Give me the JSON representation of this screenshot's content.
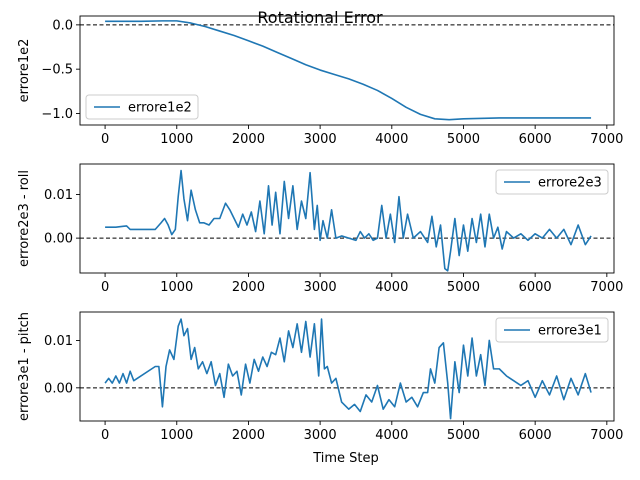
{
  "chart_data": {
    "type": "line",
    "title": "Rotational Error",
    "xlabel": "Time Step",
    "line_color": "#1f77b4",
    "reference_line": {
      "y": 0,
      "style": "dashed",
      "color": "#000000"
    },
    "subplots": [
      {
        "ylabel": "errore1e2",
        "legend": "lower-left",
        "xlim": [
          -350,
          7100
        ],
        "ylim": [
          -1.13,
          0.1
        ],
        "x_ticks": [
          0,
          1000,
          2000,
          3000,
          4000,
          5000,
          6000,
          7000
        ],
        "x_tick_labels": [
          "0",
          "1000",
          "2000",
          "3000",
          "4000",
          "5000",
          "6000",
          "7000"
        ],
        "y_ticks": [
          0.0,
          -0.5,
          -1.0
        ],
        "y_tick_labels": [
          "0.0",
          "−0.5",
          "−1.0"
        ],
        "series": [
          {
            "name": "errore1e2",
            "x": [
              0,
              500,
              800,
              1000,
              1200,
              1400,
              1600,
              1800,
              2000,
              2200,
              2400,
              2600,
              2800,
              3000,
              3200,
              3400,
              3600,
              3800,
              4000,
              4200,
              4400,
              4600,
              4800,
              5000,
              5500,
              6000,
              6500,
              6780
            ],
            "y": [
              0.04,
              0.04,
              0.045,
              0.045,
              0.02,
              -0.02,
              -0.07,
              -0.12,
              -0.18,
              -0.24,
              -0.31,
              -0.38,
              -0.45,
              -0.51,
              -0.56,
              -0.61,
              -0.67,
              -0.74,
              -0.83,
              -0.93,
              -1.01,
              -1.06,
              -1.07,
              -1.06,
              -1.05,
              -1.05,
              -1.05,
              -1.05
            ]
          }
        ]
      },
      {
        "ylabel": "errore2e3 - roll",
        "legend": "upper-right",
        "xlim": [
          -350,
          7100
        ],
        "ylim": [
          -0.008,
          0.017
        ],
        "x_ticks": [
          0,
          1000,
          2000,
          3000,
          4000,
          5000,
          6000,
          7000
        ],
        "x_tick_labels": [
          "0",
          "1000",
          "2000",
          "3000",
          "4000",
          "5000",
          "6000",
          "7000"
        ],
        "y_ticks": [
          0.01,
          0.0
        ],
        "y_tick_labels": [
          "0.01",
          "0.00"
        ],
        "series": [
          {
            "name": "errore2e3",
            "x": [
              0,
              150,
              250,
              300,
              350,
              700,
              780,
              830,
              880,
              930,
              980,
              1020,
              1060,
              1100,
              1150,
              1200,
              1260,
              1320,
              1380,
              1450,
              1520,
              1600,
              1680,
              1740,
              1800,
              1860,
              1920,
              1980,
              2040,
              2100,
              2160,
              2220,
              2280,
              2330,
              2380,
              2440,
              2500,
              2560,
              2620,
              2680,
              2740,
              2800,
              2860,
              2920,
              2960,
              3000,
              3040,
              3100,
              3160,
              3220,
              3300,
              3400,
              3500,
              3560,
              3620,
              3680,
              3740,
              3800,
              3860,
              3920,
              3980,
              4040,
              4100,
              4160,
              4220,
              4300,
              4400,
              4500,
              4560,
              4620,
              4680,
              4740,
              4780,
              4820,
              4880,
              4940,
              5000,
              5060,
              5120,
              5180,
              5240,
              5300,
              5360,
              5420,
              5480,
              5540,
              5600,
              5700,
              5800,
              5900,
              6000,
              6100,
              6200,
              6300,
              6400,
              6500,
              6600,
              6700,
              6780
            ],
            "y": [
              0.0025,
              0.0025,
              0.0027,
              0.0028,
              0.002,
              0.002,
              0.0035,
              0.0045,
              0.003,
              0.0008,
              0.002,
              0.0095,
              0.0155,
              0.009,
              0.004,
              0.011,
              0.0065,
              0.0035,
              0.0035,
              0.003,
              0.0045,
              0.0045,
              0.008,
              0.0065,
              0.0045,
              0.0025,
              0.0055,
              0.003,
              0.006,
              0.0015,
              0.0085,
              0.001,
              0.012,
              0.003,
              0.0105,
              0.001,
              0.013,
              0.0045,
              0.012,
              0.002,
              0.0085,
              0.0045,
              0.015,
              0.002,
              0.0075,
              -0.0005,
              0.004,
              0.0,
              0.0065,
              0.0,
              0.0005,
              0.0,
              -0.0005,
              0.0015,
              0.0,
              0.001,
              -0.0005,
              0.0,
              0.0075,
              0.0,
              0.0055,
              -0.001,
              0.0095,
              0.0,
              0.0055,
              0.0,
              0.0015,
              -0.001,
              0.005,
              -0.002,
              0.003,
              -0.007,
              -0.0075,
              -0.003,
              0.0045,
              -0.004,
              0.003,
              -0.003,
              0.0045,
              -0.001,
              0.0055,
              -0.002,
              0.0055,
              0.0,
              0.0025,
              -0.0025,
              0.0015,
              0.0,
              0.001,
              -0.0005,
              0.001,
              0.0,
              0.002,
              0.0,
              0.002,
              -0.0015,
              0.003,
              -0.0015,
              0.0005
            ]
          }
        ]
      },
      {
        "ylabel": "errore3e1 - pitch",
        "legend": "upper-right",
        "xlim": [
          -350,
          7100
        ],
        "ylim": [
          -0.007,
          0.016
        ],
        "x_ticks": [
          0,
          1000,
          2000,
          3000,
          4000,
          5000,
          6000,
          7000
        ],
        "x_tick_labels": [
          "0",
          "1000",
          "2000",
          "3000",
          "4000",
          "5000",
          "6000",
          "7000"
        ],
        "y_ticks": [
          0.01,
          0.0
        ],
        "y_tick_labels": [
          "0.01",
          "0.00"
        ],
        "series": [
          {
            "name": "errore3e1",
            "x": [
              0,
              50,
              100,
              150,
              200,
              250,
              300,
              350,
              400,
              700,
              750,
              800,
              850,
              900,
              960,
              1020,
              1060,
              1100,
              1150,
              1200,
              1250,
              1300,
              1360,
              1420,
              1480,
              1540,
              1600,
              1660,
              1720,
              1780,
              1840,
              1900,
              1960,
              2020,
              2080,
              2140,
              2200,
              2260,
              2320,
              2380,
              2440,
              2500,
              2560,
              2620,
              2680,
              2740,
              2800,
              2860,
              2920,
              2980,
              3020,
              3060,
              3100,
              3160,
              3220,
              3300,
              3400,
              3480,
              3560,
              3640,
              3720,
              3800,
              3880,
              3960,
              4040,
              4120,
              4200,
              4280,
              4360,
              4440,
              4500,
              4540,
              4600,
              4660,
              4720,
              4780,
              4820,
              4880,
              4940,
              5000,
              5060,
              5120,
              5180,
              5240,
              5300,
              5360,
              5420,
              5500,
              5600,
              5700,
              5800,
              5900,
              6000,
              6100,
              6200,
              6300,
              6400,
              6500,
              6600,
              6700,
              6780
            ],
            "y": [
              0.001,
              0.002,
              0.001,
              0.0025,
              0.001,
              0.003,
              0.001,
              0.0035,
              0.0015,
              0.0045,
              0.0045,
              -0.004,
              0.0045,
              0.008,
              0.006,
              0.013,
              0.0145,
              0.011,
              0.0125,
              0.006,
              0.0085,
              0.004,
              0.0055,
              0.003,
              0.0055,
              0.0005,
              0.003,
              -0.002,
              0.005,
              0.0025,
              0.0035,
              -0.0015,
              0.005,
              0.001,
              0.006,
              0.0035,
              0.0065,
              0.0045,
              0.0075,
              0.007,
              0.0105,
              0.0055,
              0.012,
              0.0085,
              0.0135,
              0.0075,
              0.014,
              0.0065,
              0.0135,
              0.0025,
              0.0145,
              0.004,
              0.0045,
              0.001,
              0.002,
              -0.003,
              -0.0045,
              -0.0035,
              -0.005,
              -0.0015,
              -0.003,
              0.0005,
              -0.0045,
              -0.0025,
              -0.004,
              0.001,
              -0.003,
              -0.002,
              -0.004,
              -0.001,
              -0.001,
              0.004,
              0.001,
              0.0085,
              0.0095,
              0.001,
              -0.0065,
              0.0055,
              -0.001,
              0.009,
              0.0025,
              0.0105,
              0.0025,
              0.007,
              0.0005,
              0.01,
              0.004,
              0.004,
              0.0025,
              0.0015,
              0.0005,
              0.0015,
              -0.002,
              0.0015,
              -0.0015,
              0.0025,
              -0.0025,
              0.002,
              -0.0015,
              0.003,
              -0.001
            ]
          }
        ]
      }
    ]
  }
}
